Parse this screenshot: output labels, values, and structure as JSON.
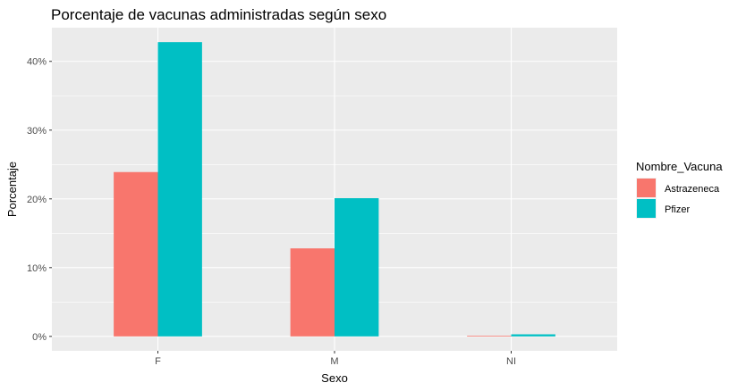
{
  "chart_data": {
    "type": "bar",
    "title": "Porcentaje de vacunas administradas según sexo",
    "xlabel": "Sexo",
    "ylabel": "Porcentaje",
    "categories": [
      "F",
      "M",
      "NI"
    ],
    "series": [
      {
        "name": "Astrazeneca",
        "color": "#F8766D",
        "values": [
          23.9,
          12.8,
          0.1
        ]
      },
      {
        "name": "Pfizer",
        "color": "#00BFC4",
        "values": [
          42.8,
          20.1,
          0.3
        ]
      }
    ],
    "ylim": [
      -2.1,
      44.9
    ],
    "yticks": [
      0,
      10,
      20,
      30,
      40
    ],
    "ytick_labels": [
      "0%",
      "10%",
      "20%",
      "30%",
      "40%"
    ],
    "grid": true,
    "legend": {
      "title": "Nombre_Vacuna",
      "position": "right"
    },
    "panel_color": "#EBEBEB"
  }
}
